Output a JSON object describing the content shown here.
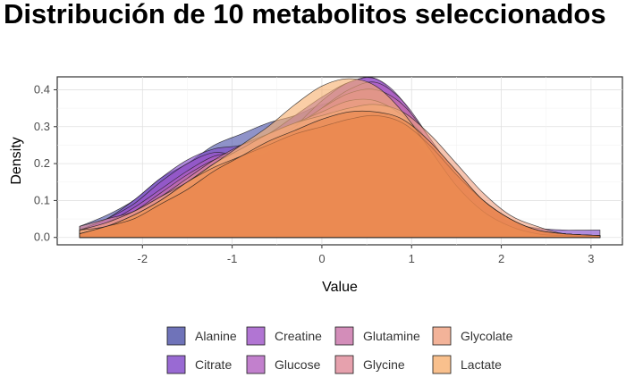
{
  "chart_data": {
    "type": "area",
    "title": "Distribución de 10 metabolitos seleccionados",
    "xlabel": "Value",
    "ylabel": "Density",
    "xlim": [
      -2.95,
      3.35
    ],
    "ylim": [
      -0.02,
      0.435
    ],
    "xticks": [
      -2,
      -1,
      0,
      1,
      2,
      3
    ],
    "xtick_labels": [
      "-2",
      "-1",
      "0",
      "1",
      "2",
      "3"
    ],
    "yticks": [
      0.0,
      0.1,
      0.2,
      0.3,
      0.4
    ],
    "ytick_labels": [
      "0.0",
      "0.1",
      "0.2",
      "0.3",
      "0.4"
    ],
    "grid": true,
    "legend_position": "bottom",
    "x": [
      -2.7,
      -2.4,
      -2.1,
      -1.8,
      -1.5,
      -1.2,
      -0.9,
      -0.6,
      -0.3,
      0.0,
      0.3,
      0.6,
      0.9,
      1.2,
      1.5,
      1.8,
      2.1,
      2.4,
      2.7,
      3.1
    ],
    "series": [
      {
        "name": "Alanine",
        "color": "#4b50a8",
        "values": [
          0.03,
          0.06,
          0.1,
          0.16,
          0.2,
          0.25,
          0.28,
          0.31,
          0.33,
          0.36,
          0.37,
          0.35,
          0.3,
          0.22,
          0.14,
          0.08,
          0.04,
          0.02,
          0.01,
          0.005
        ]
      },
      {
        "name": "Citrate",
        "color": "#8045c8",
        "values": [
          0.02,
          0.05,
          0.1,
          0.16,
          0.21,
          0.24,
          0.25,
          0.28,
          0.33,
          0.38,
          0.42,
          0.43,
          0.36,
          0.24,
          0.14,
          0.07,
          0.04,
          0.025,
          0.02,
          0.02
        ]
      },
      {
        "name": "Creatine",
        "color": "#9d53c8",
        "values": [
          0.02,
          0.05,
          0.09,
          0.15,
          0.2,
          0.23,
          0.22,
          0.23,
          0.3,
          0.37,
          0.42,
          0.43,
          0.37,
          0.25,
          0.15,
          0.08,
          0.04,
          0.02,
          0.01,
          0.005
        ]
      },
      {
        "name": "Glucose",
        "color": "#b360c0",
        "values": [
          0.02,
          0.04,
          0.08,
          0.13,
          0.18,
          0.22,
          0.23,
          0.24,
          0.29,
          0.35,
          0.4,
          0.42,
          0.37,
          0.27,
          0.16,
          0.09,
          0.04,
          0.02,
          0.01,
          0.005
        ]
      },
      {
        "name": "Glutamine",
        "color": "#c870a8",
        "values": [
          0.02,
          0.04,
          0.07,
          0.12,
          0.17,
          0.21,
          0.23,
          0.26,
          0.3,
          0.35,
          0.39,
          0.4,
          0.36,
          0.27,
          0.17,
          0.1,
          0.05,
          0.02,
          0.01,
          0.005
        ]
      },
      {
        "name": "Glycine",
        "color": "#e08a98",
        "values": [
          0.03,
          0.05,
          0.07,
          0.11,
          0.16,
          0.21,
          0.25,
          0.28,
          0.31,
          0.34,
          0.37,
          0.37,
          0.33,
          0.26,
          0.18,
          0.1,
          0.05,
          0.02,
          0.01,
          0.005
        ]
      },
      {
        "name": "Glycolate",
        "color": "#f0a080",
        "values": [
          0.02,
          0.04,
          0.07,
          0.11,
          0.15,
          0.2,
          0.24,
          0.28,
          0.31,
          0.33,
          0.35,
          0.36,
          0.34,
          0.28,
          0.2,
          0.12,
          0.06,
          0.03,
          0.01,
          0.005
        ]
      },
      {
        "name": "Lactate",
        "color": "#f7b070",
        "values": [
          0.02,
          0.03,
          0.06,
          0.1,
          0.15,
          0.2,
          0.25,
          0.3,
          0.36,
          0.41,
          0.43,
          0.41,
          0.34,
          0.24,
          0.14,
          0.07,
          0.03,
          0.01,
          0.005,
          0.002
        ]
      },
      {
        "name": "",
        "color": "#ee8a50",
        "values": [
          0.01,
          0.03,
          0.06,
          0.1,
          0.15,
          0.19,
          0.22,
          0.25,
          0.28,
          0.3,
          0.32,
          0.33,
          0.31,
          0.25,
          0.17,
          0.1,
          0.05,
          0.02,
          0.01,
          0.005
        ]
      },
      {
        "name": "",
        "color": "#e9854a",
        "values": [
          0.01,
          0.03,
          0.05,
          0.09,
          0.13,
          0.18,
          0.22,
          0.26,
          0.29,
          0.32,
          0.34,
          0.34,
          0.32,
          0.26,
          0.18,
          0.1,
          0.05,
          0.02,
          0.01,
          0.005
        ]
      }
    ]
  }
}
